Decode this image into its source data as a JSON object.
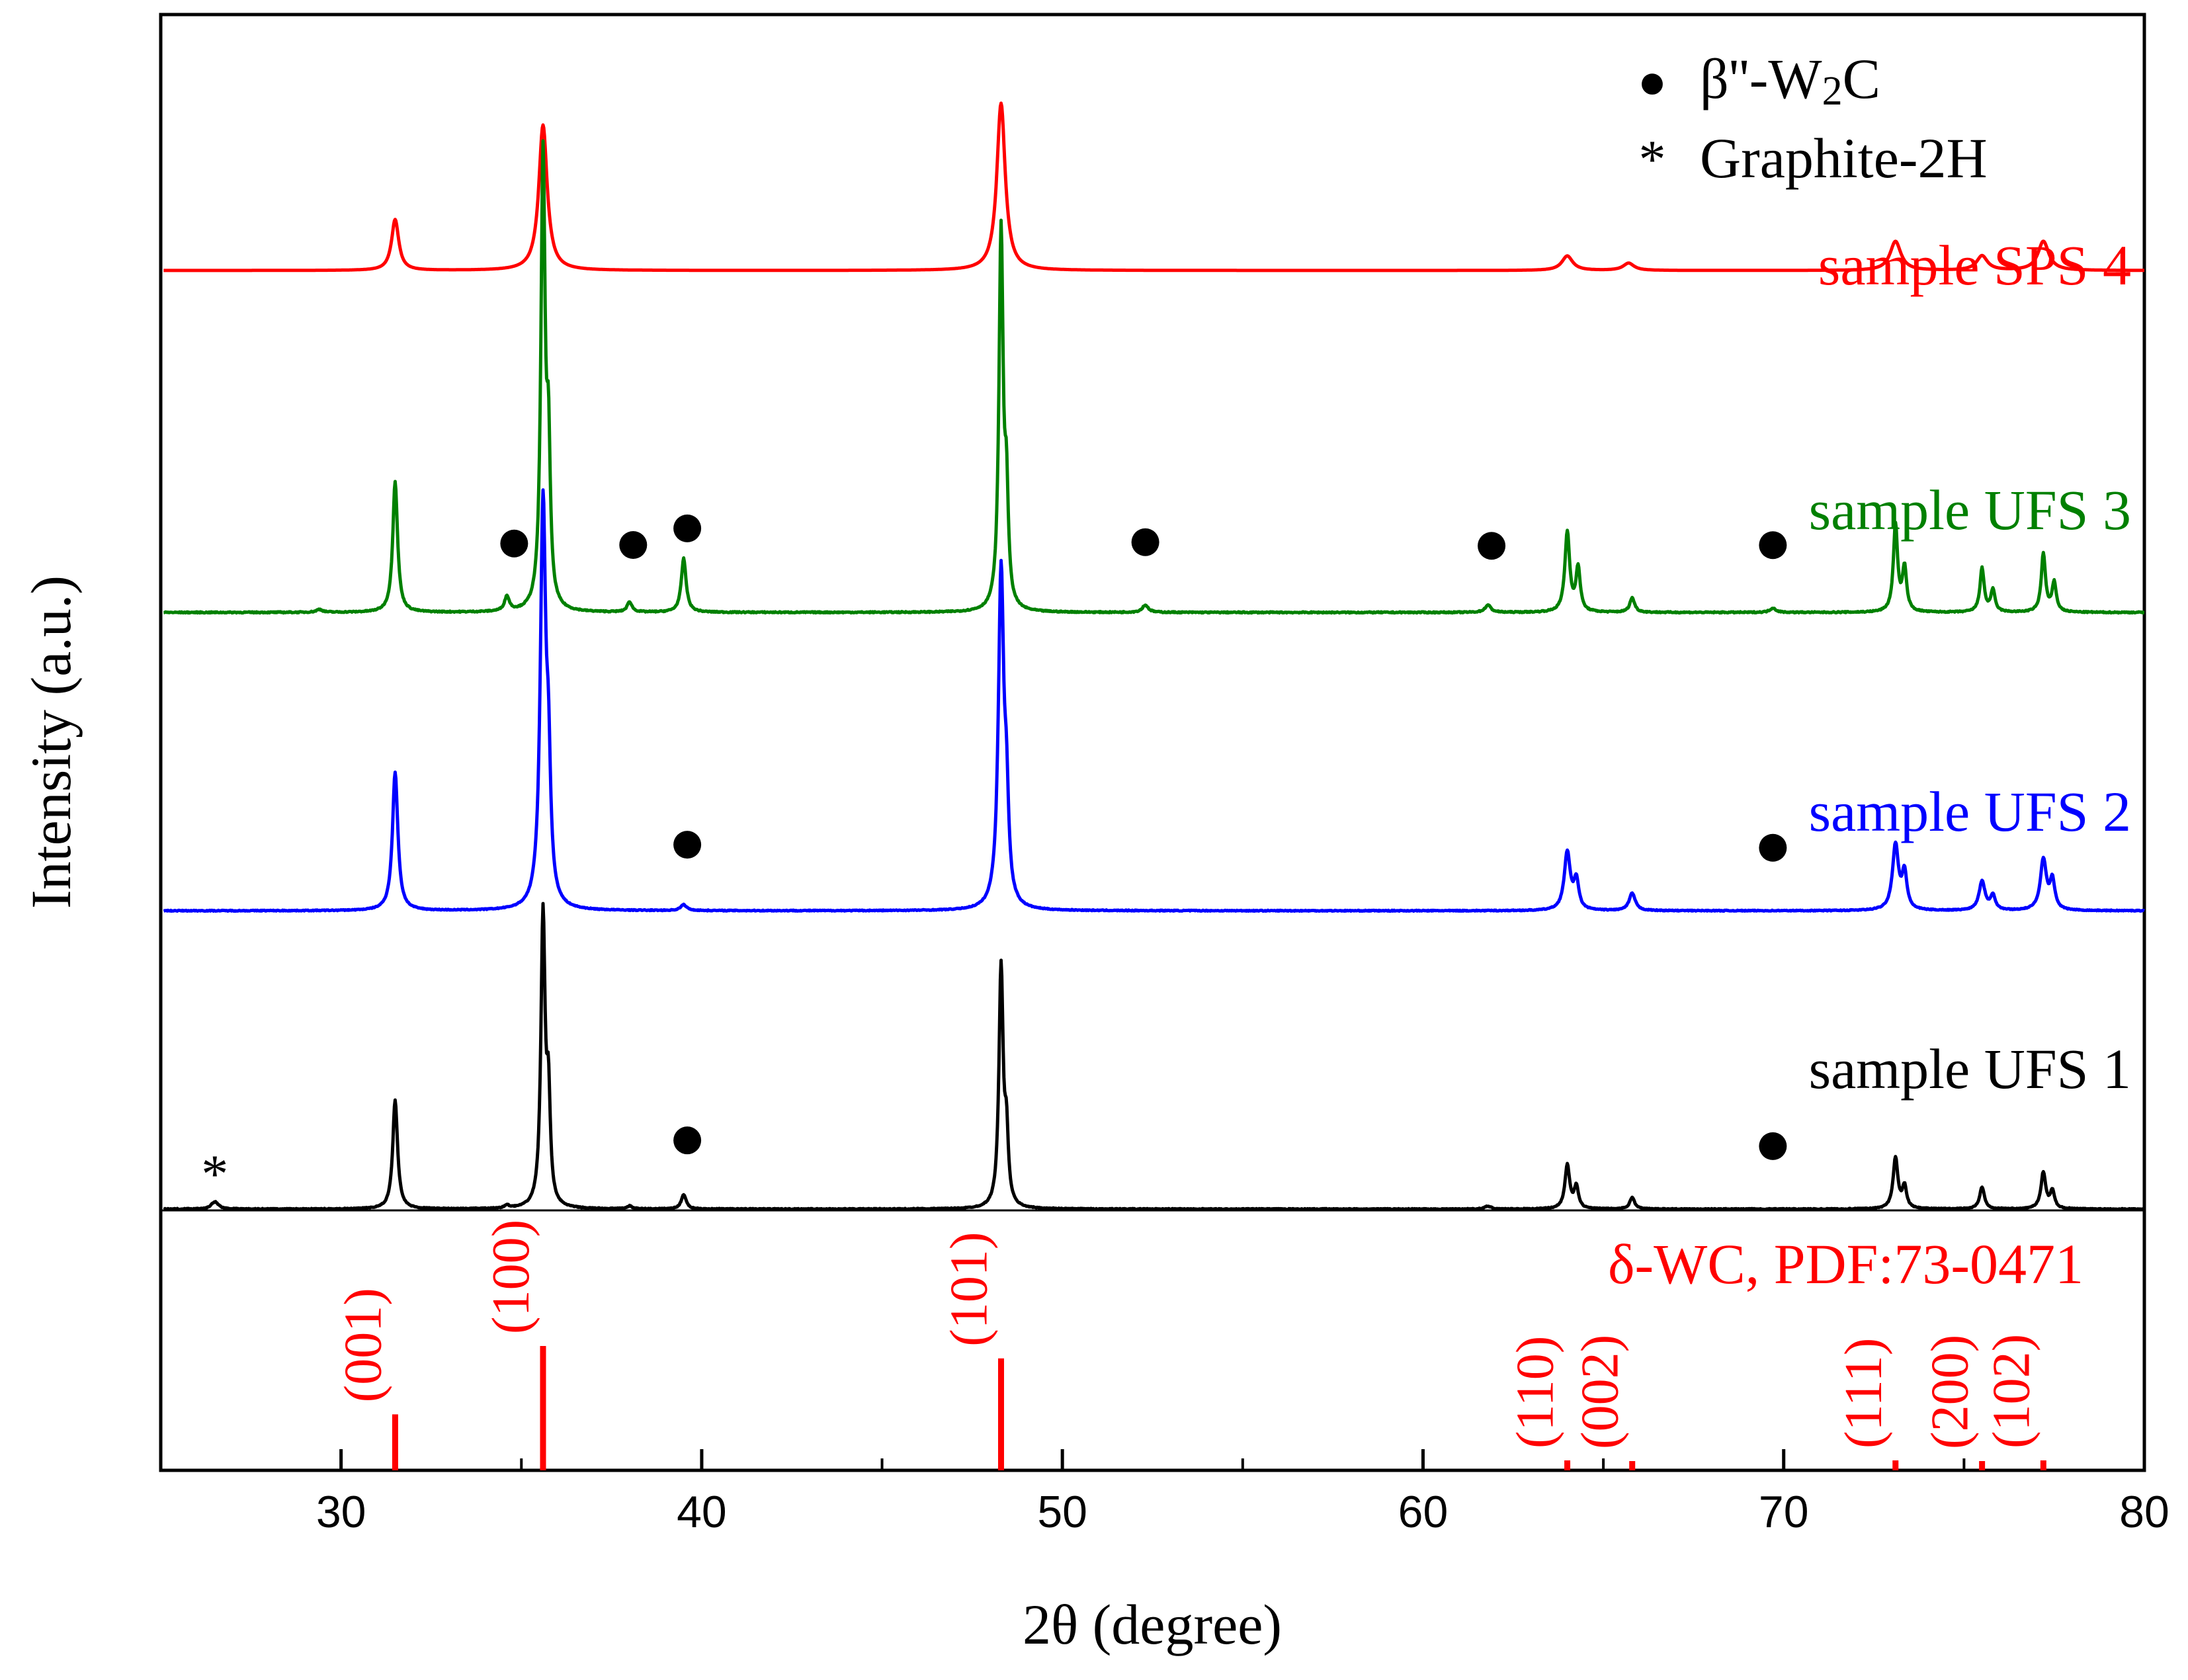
{
  "chart_data": {
    "type": "line",
    "title": "",
    "xlabel": "2θ (degree)",
    "ylabel": "Intensity (a.u.)",
    "xlim": [
      25,
      80
    ],
    "ylim": [
      0,
      8.5
    ],
    "x_ticks": [
      30,
      40,
      50,
      60,
      70,
      80
    ],
    "x_tick_labels": [
      "30",
      "40",
      "50",
      "60",
      "70",
      "80"
    ],
    "x_minor_ticks": [
      35,
      45,
      55,
      65,
      75
    ],
    "grid": false,
    "legend": {
      "placement": "top-right",
      "entries": [
        {
          "symbol": "●",
          "label_main": "β''-W",
          "label_sub": "2",
          "label_tail": "C"
        },
        {
          "symbol": "*",
          "label": "Graphite-2H"
        }
      ]
    },
    "series": [
      {
        "name": "sample SPS 4",
        "color": "#ff0000",
        "baseline": 6.45,
        "noise": 0.0,
        "peaks": [
          [
            31.5,
            0.35,
            0.12
          ],
          [
            35.6,
            1.0,
            0.14
          ],
          [
            48.3,
            1.15,
            0.14
          ],
          [
            64.0,
            0.1,
            0.18
          ],
          [
            65.7,
            0.05,
            0.18
          ],
          [
            73.1,
            0.2,
            0.18
          ],
          [
            75.5,
            0.1,
            0.18
          ],
          [
            77.2,
            0.2,
            0.18
          ]
        ],
        "markers": []
      },
      {
        "name": "sample UFS 3",
        "color": "#008000",
        "baseline": 4.1,
        "noise": 0.008,
        "peaks": [
          [
            29.4,
            0.02,
            0.1
          ],
          [
            31.5,
            0.9,
            0.08
          ],
          [
            34.6,
            0.1,
            0.08
          ],
          [
            35.6,
            3.1,
            0.07
          ],
          [
            35.75,
            1.0,
            0.06
          ],
          [
            38.0,
            0.07,
            0.08
          ],
          [
            39.5,
            0.37,
            0.08
          ],
          [
            48.3,
            2.6,
            0.07
          ],
          [
            48.45,
            0.7,
            0.06
          ],
          [
            52.3,
            0.05,
            0.1
          ],
          [
            61.8,
            0.05,
            0.1
          ],
          [
            64.0,
            0.55,
            0.08
          ],
          [
            64.3,
            0.3,
            0.07
          ],
          [
            65.8,
            0.1,
            0.08
          ],
          [
            69.7,
            0.03,
            0.1
          ],
          [
            73.1,
            0.6,
            0.07
          ],
          [
            73.35,
            0.3,
            0.07
          ],
          [
            75.5,
            0.3,
            0.07
          ],
          [
            75.8,
            0.15,
            0.07
          ],
          [
            77.2,
            0.4,
            0.07
          ],
          [
            77.5,
            0.2,
            0.07
          ]
        ],
        "markers": [
          34.8,
          38.1,
          39.6,
          52.3,
          61.9,
          69.7
        ]
      },
      {
        "name": "sample UFS 2",
        "color": "#0000ff",
        "baseline": 2.05,
        "noise": 0.006,
        "peaks": [
          [
            31.5,
            0.95,
            0.09
          ],
          [
            35.6,
            2.75,
            0.09
          ],
          [
            35.75,
            0.8,
            0.07
          ],
          [
            39.5,
            0.04,
            0.1
          ],
          [
            48.3,
            2.3,
            0.09
          ],
          [
            48.45,
            0.6,
            0.07
          ],
          [
            64.0,
            0.4,
            0.1
          ],
          [
            64.25,
            0.2,
            0.08
          ],
          [
            65.8,
            0.12,
            0.1
          ],
          [
            73.1,
            0.45,
            0.1
          ],
          [
            73.35,
            0.25,
            0.08
          ],
          [
            75.5,
            0.2,
            0.1
          ],
          [
            75.8,
            0.1,
            0.08
          ],
          [
            77.2,
            0.35,
            0.1
          ],
          [
            77.45,
            0.2,
            0.08
          ]
        ],
        "markers": [
          39.6,
          69.7
        ]
      },
      {
        "name": "sample UFS 1",
        "color": "#000000",
        "baseline": 0.0,
        "noise": 0.006,
        "peaks": [
          [
            26.5,
            0.05,
            0.12
          ],
          [
            31.5,
            0.75,
            0.08
          ],
          [
            34.6,
            0.02,
            0.08
          ],
          [
            35.6,
            2.0,
            0.07
          ],
          [
            35.75,
            0.7,
            0.06
          ],
          [
            38.0,
            0.02,
            0.08
          ],
          [
            39.5,
            0.1,
            0.08
          ],
          [
            48.3,
            1.65,
            0.07
          ],
          [
            48.45,
            0.45,
            0.06
          ],
          [
            61.8,
            0.02,
            0.1
          ],
          [
            64.0,
            0.3,
            0.08
          ],
          [
            64.25,
            0.15,
            0.07
          ],
          [
            65.8,
            0.08,
            0.08
          ],
          [
            73.1,
            0.35,
            0.08
          ],
          [
            73.35,
            0.15,
            0.07
          ],
          [
            75.5,
            0.15,
            0.08
          ],
          [
            77.2,
            0.25,
            0.08
          ],
          [
            77.45,
            0.12,
            0.07
          ]
        ],
        "markers": [
          39.6,
          69.7
        ],
        "star_markers": [
          26.5
        ]
      }
    ],
    "reference": {
      "label": "δ-WC, PDF:73-0471",
      "color": "#ff0000",
      "lines": [
        {
          "x": 31.5,
          "intensity": 0.45,
          "hkl": "(001)"
        },
        {
          "x": 35.6,
          "intensity": 1.0,
          "hkl": "(100)"
        },
        {
          "x": 48.3,
          "intensity": 0.9,
          "hkl": "(101)"
        },
        {
          "x": 64.0,
          "intensity": 0.08,
          "hkl": "(110)"
        },
        {
          "x": 65.8,
          "intensity": 0.04,
          "hkl": "(002)"
        },
        {
          "x": 73.1,
          "intensity": 0.08,
          "hkl": "(111)"
        },
        {
          "x": 75.5,
          "intensity": 0.05,
          "hkl": "(200)"
        },
        {
          "x": 77.2,
          "intensity": 0.08,
          "hkl": "(102)"
        }
      ]
    }
  }
}
